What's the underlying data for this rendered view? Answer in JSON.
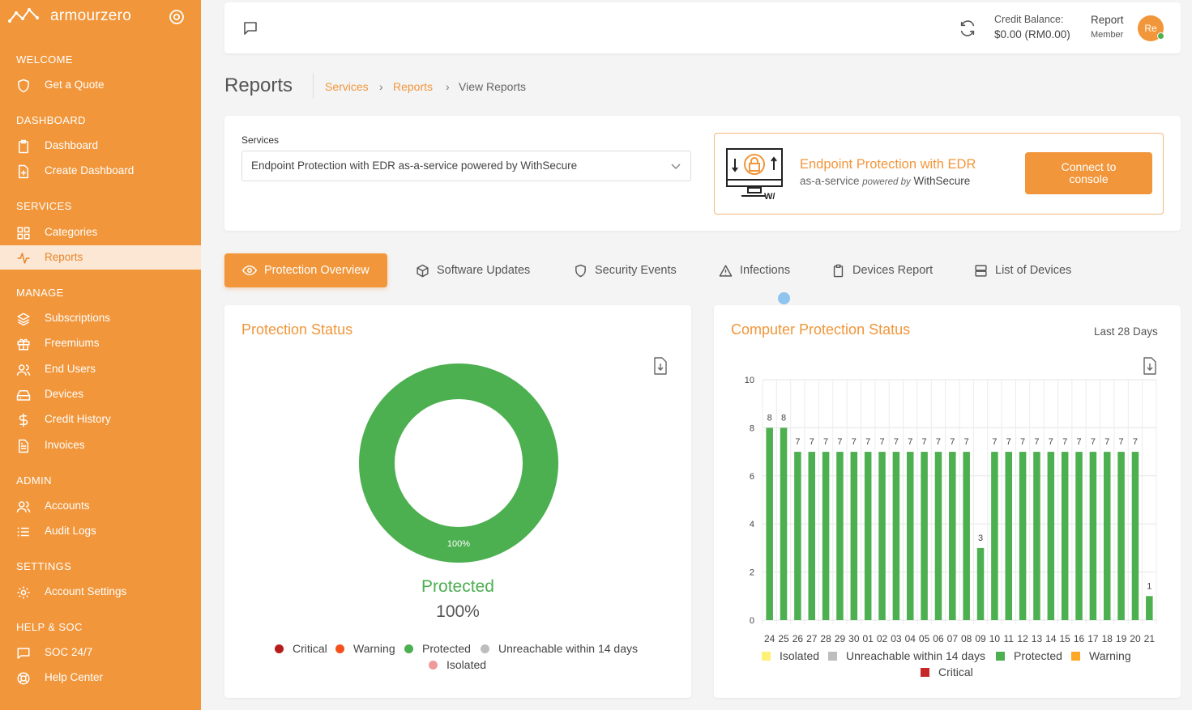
{
  "brand": {
    "name": "armourzero"
  },
  "sidebar": {
    "sections": [
      {
        "title": "WELCOME",
        "items": [
          {
            "label": "Get a Quote",
            "icon": "shield-icon"
          }
        ]
      },
      {
        "title": "DASHBOARD",
        "items": [
          {
            "label": "Dashboard",
            "icon": "clipboard-icon"
          },
          {
            "label": "Create Dashboard",
            "icon": "file-plus-icon"
          }
        ]
      },
      {
        "title": "SERVICES",
        "items": [
          {
            "label": "Categories",
            "icon": "grid-icon"
          },
          {
            "label": "Reports",
            "icon": "activity-icon",
            "active": true
          }
        ]
      },
      {
        "title": "MANAGE",
        "items": [
          {
            "label": "Subscriptions",
            "icon": "layers-icon"
          },
          {
            "label": "Freemiums",
            "icon": "gift-icon"
          },
          {
            "label": "End Users",
            "icon": "users-icon"
          },
          {
            "label": "Devices",
            "icon": "hard-drive-icon"
          },
          {
            "label": "Credit History",
            "icon": "dollar-icon"
          },
          {
            "label": "Invoices",
            "icon": "file-text-icon"
          }
        ]
      },
      {
        "title": "ADMIN",
        "items": [
          {
            "label": "Accounts",
            "icon": "users-icon"
          },
          {
            "label": "Audit Logs",
            "icon": "list-icon"
          }
        ]
      },
      {
        "title": "SETTINGS",
        "items": [
          {
            "label": "Account Settings",
            "icon": "gear-icon"
          }
        ]
      },
      {
        "title": "HELP & SOC",
        "items": [
          {
            "label": "SOC 24/7",
            "icon": "message-icon"
          },
          {
            "label": "Help Center",
            "icon": "life-buoy-icon"
          }
        ]
      }
    ]
  },
  "topbar": {
    "credit_label": "Credit Balance:",
    "credit_value": "$0.00 (RM0.00)",
    "user_name": "Report",
    "user_role": "Member",
    "avatar_initials": "Re"
  },
  "page": {
    "title": "Reports",
    "breadcrumb": [
      "Services",
      "Reports",
      "View Reports"
    ]
  },
  "services": {
    "label": "Services",
    "selected": "Endpoint Protection with EDR as-a-service powered by WithSecure",
    "promo_title": "Endpoint Protection with EDR",
    "promo_sub_a": "as-a-service ",
    "promo_sub_b": "powered by",
    "promo_sub_c": " WithSecure",
    "connect_label_1": "Connect to",
    "connect_label_2": "console"
  },
  "tabs": [
    {
      "label": "Protection Overview",
      "icon": "eye-icon",
      "active": true
    },
    {
      "label": "Software Updates",
      "icon": "box-icon"
    },
    {
      "label": "Security Events",
      "icon": "shield-icon"
    },
    {
      "label": "Infections",
      "icon": "alert-triangle-icon"
    },
    {
      "label": "Devices Report",
      "icon": "clipboard-icon"
    },
    {
      "label": "List of Devices",
      "icon": "server-icon"
    }
  ],
  "protection_status": {
    "title": "Protection Status",
    "center_label": "Protected",
    "center_value": "100%",
    "slice_label": "100%",
    "legend": [
      {
        "label": "Critical",
        "color": "#b71c1c"
      },
      {
        "label": "Warning",
        "color": "#f4511e"
      },
      {
        "label": "Protected",
        "color": "#4caf50"
      },
      {
        "label": "Unreachable within 14 days",
        "color": "#bdbdbd"
      },
      {
        "label": "Isolated",
        "color": "#ef9a9a"
      }
    ]
  },
  "computer_status": {
    "title": "Computer Protection Status",
    "range": "Last 28 Days",
    "legend": [
      {
        "label": "Isolated",
        "color": "#fff176"
      },
      {
        "label": "Unreachable within 14 days",
        "color": "#bdbdbd"
      },
      {
        "label": "Protected",
        "color": "#4caf50"
      },
      {
        "label": "Warning",
        "color": "#ffa726"
      },
      {
        "label": "Critical",
        "color": "#c62828"
      }
    ]
  },
  "chart_data": [
    {
      "type": "pie",
      "title": "Protection Status",
      "categories": [
        "Critical",
        "Warning",
        "Protected",
        "Unreachable within 14 days",
        "Isolated"
      ],
      "values": [
        0,
        0,
        100,
        0,
        0
      ],
      "legend": "bottom"
    },
    {
      "type": "bar",
      "title": "Computer Protection Status",
      "categories": [
        "24",
        "25",
        "26",
        "27",
        "28",
        "29",
        "30",
        "01",
        "02",
        "03",
        "04",
        "05",
        "06",
        "07",
        "08",
        "09",
        "10",
        "11",
        "12",
        "13",
        "14",
        "15",
        "16",
        "17",
        "18",
        "19",
        "20",
        "21"
      ],
      "series": [
        {
          "name": "Protected",
          "values": [
            8,
            8,
            7,
            7,
            7,
            7,
            7,
            7,
            7,
            7,
            7,
            7,
            7,
            7,
            7,
            3,
            7,
            7,
            7,
            7,
            7,
            7,
            7,
            7,
            7,
            7,
            7,
            1
          ]
        }
      ],
      "ylim": [
        0,
        10
      ],
      "yticks": [
        0,
        2,
        4,
        6,
        8,
        10
      ],
      "grid": true,
      "legend": "bottom"
    }
  ]
}
